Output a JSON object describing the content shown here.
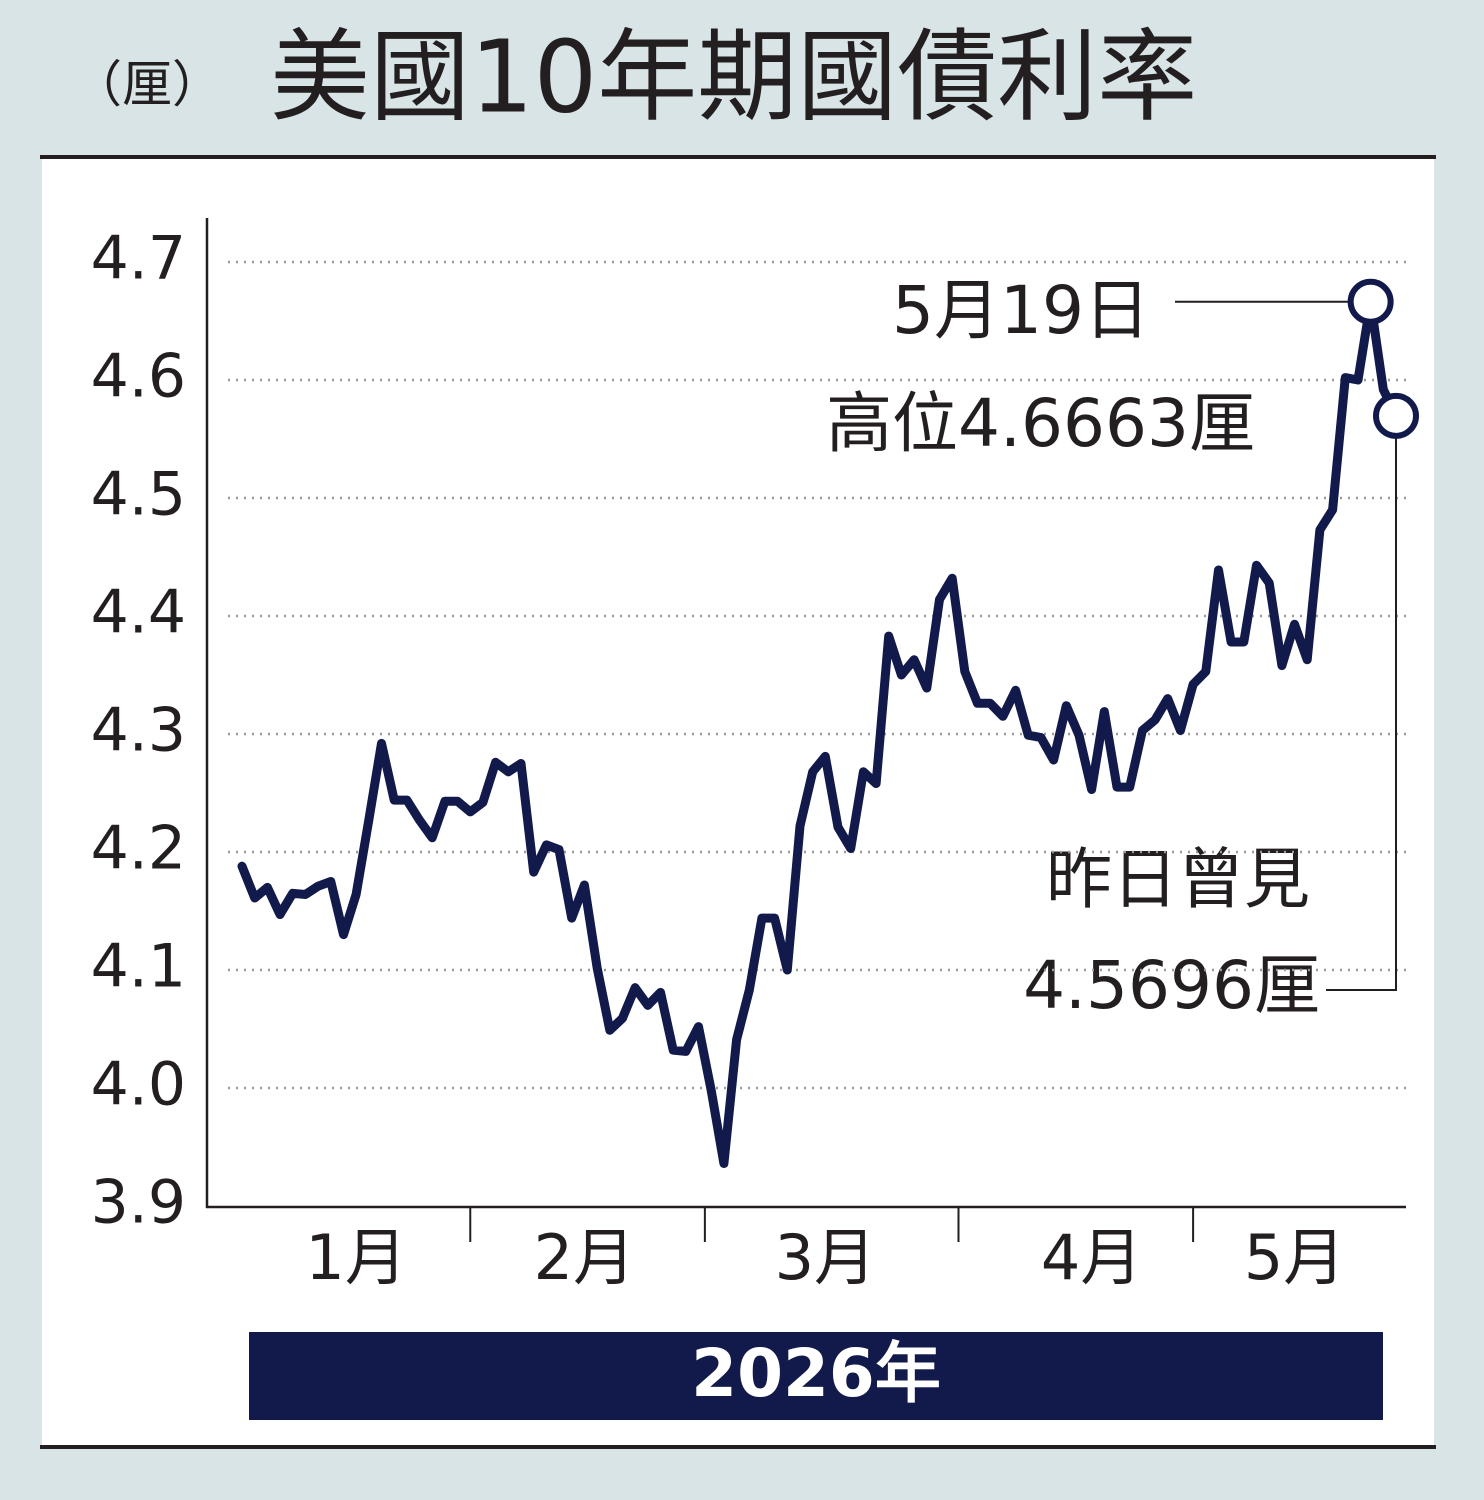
{
  "chart_data": {
    "type": "line",
    "unit": "（厘）",
    "title": "美國10年期國債利率",
    "xlabel": "2026年",
    "categories": [
      null,
      null,
      null,
      null,
      null,
      null,
      null,
      null,
      null,
      "1月",
      null,
      null,
      null,
      null,
      null,
      null,
      null,
      null,
      null,
      null,
      null,
      null,
      null,
      null,
      null,
      null,
      null,
      "2月",
      null,
      null,
      null,
      null,
      null,
      null,
      null,
      null,
      null,
      null,
      null,
      null,
      null,
      null,
      null,
      null,
      null,
      null,
      "3月",
      null,
      null,
      null,
      null,
      null,
      null,
      null,
      null,
      null,
      null,
      null,
      null,
      null,
      null,
      null,
      null,
      null,
      null,
      null,
      null,
      "4月",
      null,
      null,
      null,
      null,
      null,
      null,
      null,
      null,
      null,
      null,
      null,
      null,
      null,
      null,
      null,
      "5月",
      null,
      null,
      null,
      null,
      null,
      null,
      null,
      null
    ],
    "values": [
      4.188,
      4.161,
      4.17,
      4.147,
      4.165,
      4.164,
      4.171,
      4.175,
      4.13,
      4.164,
      4.227,
      4.292,
      4.244,
      4.244,
      4.227,
      4.212,
      4.243,
      4.243,
      4.234,
      4.242,
      4.276,
      4.268,
      4.275,
      4.183,
      4.206,
      4.202,
      4.144,
      4.172,
      4.102,
      4.049,
      4.059,
      4.085,
      4.07,
      4.081,
      4.032,
      4.031,
      4.052,
      3.998,
      3.936,
      4.041,
      4.083,
      4.144,
      4.144,
      4.1,
      4.222,
      4.268,
      4.281,
      4.221,
      4.203,
      4.268,
      4.258,
      4.383,
      4.35,
      4.363,
      4.339,
      4.414,
      4.432,
      4.353,
      4.326,
      4.326,
      4.315,
      4.337,
      4.299,
      4.297,
      4.278,
      4.324,
      4.299,
      4.253,
      4.319,
      4.255,
      4.255,
      4.303,
      4.312,
      4.33,
      4.303,
      4.342,
      4.353,
      4.439,
      4.378,
      4.378,
      4.443,
      4.428,
      4.358,
      4.393,
      4.363,
      4.473,
      4.49,
      4.602,
      4.6,
      4.6663,
      4.592,
      4.5696
    ],
    "color": "#111a4b",
    "ylim": [
      3.9,
      4.7
    ],
    "yticks": [
      {
        "value": 3.9,
        "label": "3.9"
      },
      {
        "value": 4.0,
        "label": "4.0"
      },
      {
        "value": 4.1,
        "label": "4.1"
      },
      {
        "value": 4.2,
        "label": "4.2"
      },
      {
        "value": 4.3,
        "label": "4.3"
      },
      {
        "value": 4.4,
        "label": "4.4"
      },
      {
        "value": 4.5,
        "label": "4.5"
      },
      {
        "value": 4.6,
        "label": "4.6"
      },
      {
        "value": 4.7,
        "label": "4.7"
      }
    ],
    "grid": true,
    "annotations": [
      "5月19日",
      "高位4.6663厘",
      "昨日曾見",
      "4.5696厘"
    ]
  }
}
